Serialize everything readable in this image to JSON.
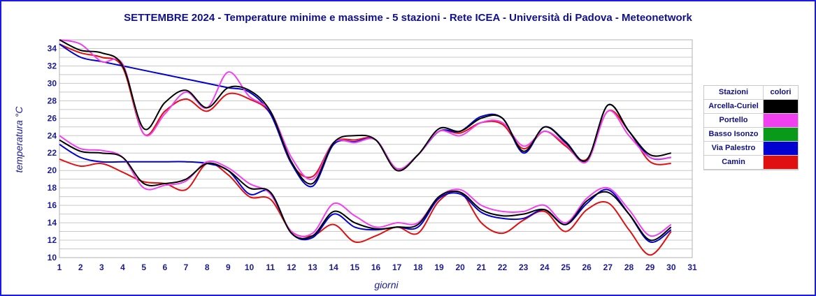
{
  "chart_data": {
    "type": "line",
    "title": "SETTEMBRE 2024 - Temperature minime e massime - 5 stazioni -  Rete ICEA - Università di Padova - Meteonetwork",
    "xlabel": "giorni",
    "ylabel": "temperatura °C",
    "xlim": [
      1,
      31
    ],
    "ylim": [
      10,
      35
    ],
    "x_ticks": [
      "1",
      "2",
      "3",
      "4",
      "5",
      "6",
      "7",
      "8",
      "9",
      "10",
      "11",
      "12",
      "13",
      "14",
      "15",
      "16",
      "17",
      "18",
      "19",
      "20",
      "21",
      "22",
      "23",
      "24",
      "25",
      "26",
      "27",
      "28",
      "29",
      "30",
      "31"
    ],
    "y_ticks": [
      "10",
      "12",
      "14",
      "16",
      "18",
      "20",
      "22",
      "24",
      "26",
      "28",
      "30",
      "32",
      "34"
    ],
    "grid": true,
    "legend_position": "right",
    "legend_header": {
      "station": "Stazioni",
      "color": "colori"
    },
    "x": [
      1,
      2,
      3,
      4,
      5,
      6,
      7,
      8,
      9,
      10,
      11,
      12,
      13,
      14,
      15,
      16,
      17,
      18,
      19,
      20,
      21,
      22,
      23,
      24,
      25,
      26,
      27,
      28,
      29,
      30
    ],
    "series": [
      {
        "name": "Arcella-Curiel",
        "color": "#000000",
        "max": [
          35.0,
          33.8,
          33.5,
          32.0,
          24.8,
          27.8,
          29.2,
          27.2,
          29.5,
          29.2,
          26.8,
          21.0,
          18.5,
          23.2,
          24.0,
          23.5,
          20.0,
          21.8,
          24.8,
          24.5,
          26.0,
          26.0,
          22.2,
          25.0,
          23.2,
          21.2,
          27.5,
          24.5,
          21.8,
          22.0
        ],
        "min": [
          23.5,
          22.2,
          22.0,
          21.5,
          18.5,
          18.5,
          19.0,
          20.8,
          20.0,
          18.0,
          17.5,
          12.8,
          12.5,
          15.3,
          14.0,
          13.3,
          13.5,
          13.8,
          17.0,
          17.5,
          15.5,
          14.8,
          15.0,
          15.5,
          13.8,
          16.5,
          17.5,
          15.0,
          12.0,
          13.5
        ]
      },
      {
        "name": "Portello",
        "color": "#f040f0",
        "max": [
          35.0,
          34.5,
          32.5,
          32.2,
          24.2,
          26.5,
          29.0,
          27.2,
          31.3,
          28.5,
          26.8,
          21.5,
          19.0,
          23.2,
          23.2,
          23.5,
          20.2,
          21.8,
          24.5,
          24.0,
          25.5,
          25.5,
          22.8,
          24.5,
          23.0,
          21.0,
          26.8,
          24.0,
          21.5,
          21.5
        ],
        "min": [
          24.0,
          22.5,
          22.3,
          21.5,
          18.0,
          18.3,
          18.8,
          21.0,
          20.3,
          18.5,
          17.3,
          13.0,
          12.8,
          16.2,
          14.8,
          13.5,
          14.0,
          14.0,
          17.0,
          17.8,
          16.0,
          15.3,
          15.3,
          16.0,
          14.0,
          16.8,
          18.0,
          15.5,
          12.5,
          13.8
        ]
      },
      {
        "name": "Basso Isonzo",
        "color": "#0a9a1a",
        "max": [],
        "min": []
      },
      {
        "name": "Via Palestro",
        "color": "#0000d0",
        "max": [
          34.5,
          33.0,
          32.5,
          32.0,
          31.5,
          31.0,
          30.5,
          30.0,
          29.5,
          29.0,
          26.5,
          20.8,
          18.2,
          23.0,
          23.3,
          23.5,
          20.2,
          21.8,
          24.5,
          24.5,
          26.2,
          26.0,
          22.0,
          25.0,
          23.3,
          21.2,
          27.5,
          24.5,
          21.5,
          21.5
        ],
        "min": [
          23.0,
          21.5,
          21.0,
          21.0,
          21.0,
          21.0,
          21.0,
          20.8,
          20.0,
          17.3,
          17.5,
          12.8,
          12.3,
          15.0,
          13.5,
          13.2,
          13.5,
          13.5,
          16.8,
          17.3,
          15.2,
          14.5,
          14.5,
          15.5,
          13.8,
          16.2,
          17.8,
          15.0,
          11.8,
          13.2
        ]
      },
      {
        "name": "Camin",
        "color": "#e01010",
        "max": [
          34.5,
          33.5,
          33.0,
          31.8,
          24.2,
          26.8,
          28.2,
          26.8,
          28.8,
          28.2,
          26.5,
          20.8,
          19.3,
          23.2,
          23.5,
          23.5,
          20.0,
          21.8,
          24.5,
          24.3,
          25.5,
          25.3,
          22.5,
          24.5,
          22.8,
          21.3,
          26.8,
          24.5,
          21.0,
          20.8
        ],
        "min": [
          21.3,
          20.5,
          20.8,
          19.8,
          18.7,
          18.5,
          17.8,
          20.8,
          19.5,
          17.0,
          16.7,
          13.0,
          12.5,
          13.8,
          11.8,
          12.5,
          13.5,
          12.8,
          16.5,
          17.5,
          14.0,
          12.8,
          14.3,
          15.3,
          13.0,
          15.5,
          16.3,
          13.2,
          10.3,
          13.0
        ]
      }
    ]
  }
}
